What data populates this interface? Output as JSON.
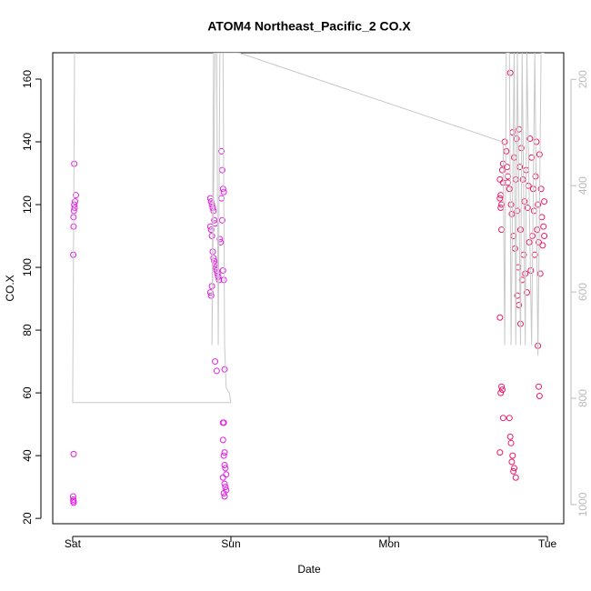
{
  "chart_data": {
    "type": "scatter",
    "title": "ATOM4 Northeast_Pacific_2 CO.X",
    "xlabel": "Date",
    "ylabel": "CO.X",
    "xlim": [
      -0.126,
      3.103
    ],
    "xticks": [
      {
        "value": 0,
        "label": "Sat"
      },
      {
        "value": 1,
        "label": "Sun"
      },
      {
        "value": 2,
        "label": "Mon"
      },
      {
        "value": 3,
        "label": "Tue"
      }
    ],
    "ylim": [
      18.3,
      168.4
    ],
    "yticks": [
      20,
      40,
      60,
      80,
      100,
      120,
      140,
      160
    ],
    "y2lim": [
      1036,
      150
    ],
    "y2ticks": [
      200,
      400,
      600,
      800,
      1000
    ],
    "series": [
      {
        "color": "#e020e0",
        "x": [
          0.01,
          0.02,
          0.015,
          0.01,
          0.012,
          0.008,
          0.005,
          0.006,
          0.004,
          0.006,
          0.003,
          0.004,
          0.005,
          0.006,
          0.87,
          0.875,
          0.88,
          0.885,
          0.89,
          0.895,
          0.9,
          0.87,
          0.875,
          0.88,
          0.885,
          0.89,
          0.895,
          0.9,
          0.905,
          0.91,
          0.915,
          0.92,
          0.925,
          0.88,
          0.87,
          0.875,
          0.93,
          0.935,
          0.94,
          0.945,
          0.95,
          0.955,
          0.94,
          0.945,
          0.95,
          0.955,
          0.9,
          0.91,
          0.96,
          0.95,
          0.955,
          0.95,
          0.96,
          0.955,
          0.96,
          0.965,
          0.97,
          0.95,
          0.96,
          0.965,
          0.97,
          0.955,
          0.96
        ],
        "values": [
          133,
          123,
          121,
          120,
          119,
          118,
          116,
          113,
          104,
          40.5,
          27,
          26,
          25.5,
          25,
          122,
          121,
          120,
          119,
          118,
          115,
          114,
          113,
          112,
          110,
          105,
          103,
          102,
          101,
          100,
          99,
          98,
          97,
          96,
          94,
          92,
          91,
          109,
          108,
          137,
          131,
          125,
          124,
          122,
          115,
          99,
          96,
          70,
          67,
          67.5,
          50.5,
          50.5,
          45,
          41,
          40,
          37,
          36,
          34,
          33,
          31,
          30,
          29,
          28,
          27
        ]
      },
      {
        "color": "#ee1a6a",
        "x": [
          2.7,
          2.705,
          2.71,
          2.715,
          2.72,
          2.7,
          2.705,
          2.71,
          2.72,
          2.73,
          2.74,
          2.745,
          2.75,
          2.75,
          2.76,
          2.765,
          2.77,
          2.775,
          2.78,
          2.785,
          2.79,
          2.795,
          2.8,
          2.805,
          2.81,
          2.815,
          2.82,
          2.825,
          2.83,
          2.835,
          2.84,
          2.845,
          2.85,
          2.855,
          2.86,
          2.865,
          2.87,
          2.875,
          2.88,
          2.885,
          2.89,
          2.895,
          2.9,
          2.905,
          2.91,
          2.915,
          2.92,
          2.925,
          2.93,
          2.935,
          2.94,
          2.945,
          2.95,
          2.955,
          2.96,
          2.965,
          2.97,
          2.975,
          2.98,
          2.98,
          2.7,
          2.71,
          2.715,
          2.705,
          2.72,
          2.7,
          2.76,
          2.765,
          2.77,
          2.78,
          2.775,
          2.79,
          2.785,
          2.8,
          2.81,
          2.82,
          2.83,
          2.94,
          2.945,
          2.95
        ],
        "values": [
          128,
          123,
          120,
          131,
          127,
          122,
          119,
          112,
          133,
          140,
          137,
          132,
          129,
          127,
          125,
          162,
          120,
          117,
          143,
          110,
          135,
          106,
          128,
          141,
          118,
          100,
          144,
          132,
          112,
          138,
          96,
          128,
          104,
          121,
          98,
          131,
          92,
          119,
          126,
          108,
          141,
          99,
          135,
          110,
          125,
          118,
          104,
          129,
          140,
          112,
          120,
          108,
          136,
          98,
          125,
          116,
          107,
          113,
          110,
          121,
          84,
          62,
          61,
          60,
          52,
          41,
          52,
          46,
          44,
          40,
          38,
          36,
          35,
          33,
          91,
          88,
          82,
          75,
          62,
          59
        ]
      },
      {
        "type": "line",
        "axis": "y2",
        "color": "#c8c8c8",
        "x": [
          0.012,
          0.0,
          1.0,
          0.99,
          0.97,
          0.96,
          0.95,
          0.93,
          0.92,
          0.91,
          0.89,
          0.88,
          0.9,
          1.05,
          2.72,
          2.73,
          2.74,
          2.76,
          2.77,
          2.79,
          2.8,
          2.81,
          2.83,
          2.84,
          2.86,
          2.87,
          2.9,
          2.92,
          2.94,
          2.96,
          2.98
        ],
        "values": [
          150,
          808,
          808,
          790,
          780,
          700,
          150,
          150,
          700,
          150,
          150,
          700,
          150,
          150,
          318,
          700,
          150,
          150,
          700,
          150,
          700,
          150,
          700,
          150,
          700,
          150,
          700,
          150,
          720,
          150,
          150
        ]
      }
    ]
  }
}
